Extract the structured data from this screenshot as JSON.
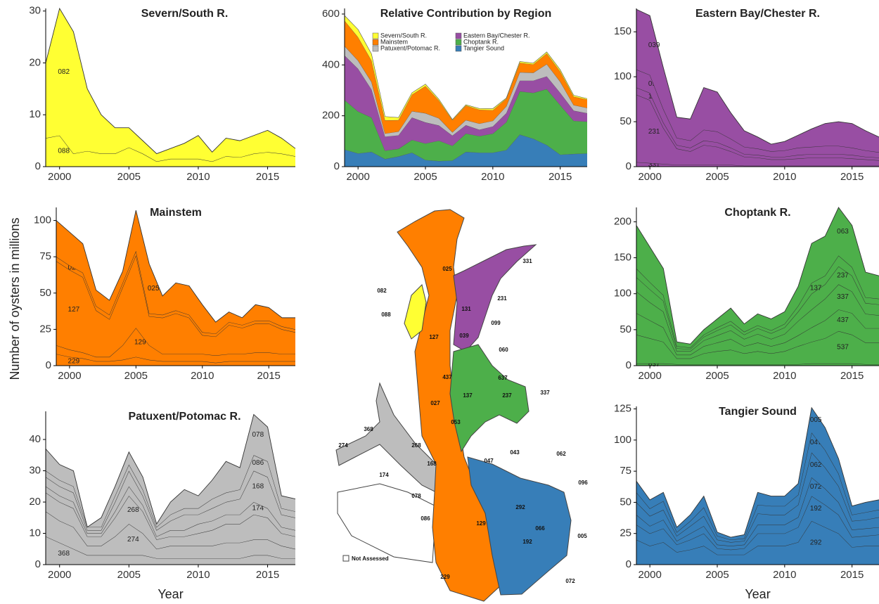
{
  "chart_data": [
    {
      "type": "area",
      "title": "Severn/South R.",
      "color": "#ffff33",
      "x": [
        1999,
        2000,
        2001,
        2002,
        2003,
        2004,
        2005,
        2006,
        2007,
        2008,
        2009,
        2010,
        2011,
        2012,
        2013,
        2014,
        2015,
        2016,
        2017
      ],
      "xlim": [
        1999,
        2017
      ],
      "xticks": [
        2000,
        2005,
        2010,
        2015
      ],
      "ylim": [
        0,
        30.5
      ],
      "yticks": [
        0,
        10,
        20,
        30
      ],
      "series": [
        {
          "name": "082",
          "values": [
            14.5,
            24.5,
            23.5,
            12,
            7.5,
            5,
            3.8,
            2.5,
            1.5,
            2,
            3,
            4.5,
            1.8,
            3.5,
            3.2,
            3.5,
            4.2,
            3,
            1.5
          ]
        },
        {
          "name": "088",
          "values": [
            5.5,
            6,
            2.5,
            3,
            2.5,
            2.5,
            3.7,
            2.5,
            1,
            1.5,
            1.5,
            1.5,
            1,
            2,
            1.8,
            2.5,
            2.8,
            2.5,
            2
          ]
        }
      ]
    },
    {
      "type": "area",
      "title": "Relative Contribution by Region",
      "legend": "top",
      "x": [
        1999,
        2000,
        2001,
        2002,
        2003,
        2004,
        2005,
        2006,
        2007,
        2008,
        2009,
        2010,
        2011,
        2012,
        2013,
        2014,
        2015,
        2016,
        2017
      ],
      "xlim": [
        1999,
        2017
      ],
      "xticks": [
        2000,
        2005,
        2010,
        2015
      ],
      "ylim": [
        0,
        622
      ],
      "yticks": [
        0,
        200,
        400,
        600
      ],
      "series": [
        {
          "name": "Severn/South R.",
          "color": "#ffff33",
          "values": [
            20,
            30.5,
            26,
            15,
            10,
            7.5,
            7.5,
            5,
            2.5,
            3.5,
            4.5,
            6,
            2.8,
            5.5,
            5,
            6,
            7,
            5.5,
            3.5
          ]
        },
        {
          "name": "Mainstem",
          "color": "#ff7f00",
          "values": [
            100,
            92,
            84,
            52,
            45,
            65,
            107,
            70,
            48,
            57,
            55,
            42,
            30,
            37,
            33,
            42,
            40,
            33,
            33
          ]
        },
        {
          "name": "Patuxent/Potomac R.",
          "color": "#bdbdbd",
          "values": [
            37,
            32,
            30,
            12,
            15,
            25,
            36,
            28,
            13,
            20,
            24,
            22,
            27,
            33,
            31,
            48,
            44,
            22,
            21
          ]
        },
        {
          "name": "Eastern Bay/Chester R.",
          "color": "#984ea3",
          "values": [
            175,
            168,
            110,
            55,
            53,
            88,
            83,
            60,
            40,
            33,
            25,
            28,
            35,
            42,
            48,
            50,
            48,
            40,
            33
          ]
        },
        {
          "name": "Choptank R.",
          "color": "#4daf4a",
          "values": [
            195,
            165,
            135,
            33,
            30,
            50,
            65,
            80,
            58,
            72,
            65,
            75,
            110,
            170,
            180,
            220,
            195,
            130,
            125
          ]
        },
        {
          "name": "Tangier Sound",
          "color": "#377eb8",
          "values": [
            67,
            52,
            58,
            30,
            40,
            55,
            26,
            22,
            24,
            58,
            55,
            55,
            65,
            126,
            110,
            85,
            47,
            50,
            52
          ]
        }
      ]
    },
    {
      "type": "area",
      "title": "Eastern Bay/Chester R.",
      "color": "#984ea3",
      "x": [
        1999,
        2000,
        2001,
        2002,
        2003,
        2004,
        2005,
        2006,
        2007,
        2008,
        2009,
        2010,
        2011,
        2012,
        2013,
        2014,
        2015,
        2016,
        2017
      ],
      "xlim": [
        1999,
        2017
      ],
      "xticks": [
        2000,
        2005,
        2010,
        2015
      ],
      "ylim": [
        0,
        176
      ],
      "yticks": [
        0,
        50,
        100,
        150
      ],
      "series": [
        {
          "name": "039",
          "values": [
            67,
            66,
            46,
            23,
            24,
            47,
            44,
            29,
            18,
            13,
            8,
            10,
            14,
            20,
            25,
            27,
            27,
            22,
            17
          ]
        },
        {
          "name": "099",
          "values": [
            20,
            20,
            15,
            8,
            8,
            12,
            12,
            10,
            8,
            7,
            6,
            7,
            8,
            8,
            9,
            9,
            8,
            7,
            6
          ]
        },
        {
          "name": "131",
          "values": [
            8,
            8,
            6,
            4,
            4,
            5,
            5,
            4,
            3,
            3,
            3,
            3,
            4,
            4,
            4,
            4,
            4,
            3,
            3
          ]
        },
        {
          "name": "231",
          "values": [
            75,
            70,
            40,
            18,
            15,
            22,
            20,
            15,
            10,
            9,
            7,
            7,
            8,
            9,
            9,
            9,
            8,
            7,
            6
          ]
        },
        {
          "name": "331",
          "values": [
            5,
            4,
            3,
            2,
            2,
            2,
            2,
            2,
            1,
            1,
            1,
            1,
            1,
            1,
            1,
            1,
            1,
            1,
            1
          ]
        }
      ]
    },
    {
      "type": "area",
      "title": "Mainstem",
      "color": "#ff7f00",
      "ylabel": "Number of oysters in millions",
      "x": [
        1999,
        2000,
        2001,
        2002,
        2003,
        2004,
        2005,
        2006,
        2007,
        2008,
        2009,
        2010,
        2011,
        2012,
        2013,
        2014,
        2015,
        2016,
        2017
      ],
      "xlim": [
        1999,
        2017
      ],
      "xticks": [
        2000,
        2005,
        2010,
        2015
      ],
      "ylim": [
        0,
        109
      ],
      "yticks": [
        0,
        25,
        50,
        75,
        100
      ],
      "series": [
        {
          "name": "025",
          "values": [
            25,
            23,
            20,
            11,
            10,
            8,
            28,
            34,
            13,
            19,
            20,
            19,
            8,
            7,
            5,
            11,
            9,
            6,
            8
          ]
        },
        {
          "name": "027",
          "values": [
            3,
            3,
            3,
            3,
            3,
            3,
            3,
            2,
            2,
            2,
            2,
            2,
            2,
            2,
            2,
            2,
            2,
            2,
            2
          ]
        },
        {
          "name": "127",
          "values": [
            58,
            55,
            52,
            32,
            26,
            40,
            50,
            20,
            25,
            28,
            25,
            13,
            13,
            20,
            18,
            20,
            20,
            17,
            15
          ]
        },
        {
          "name": "129",
          "values": [
            6,
            5,
            4,
            3,
            3,
            10,
            20,
            10,
            5,
            5,
            5,
            5,
            5,
            5,
            5,
            6,
            6,
            5,
            5
          ]
        },
        {
          "name": "229",
          "values": [
            8,
            6,
            5,
            3,
            3,
            4,
            6,
            4,
            3,
            3,
            3,
            3,
            2,
            3,
            3,
            3,
            3,
            3,
            3
          ]
        }
      ]
    },
    {
      "type": "area",
      "title": "Choptank R.",
      "color": "#4daf4a",
      "x": [
        1999,
        2000,
        2001,
        2002,
        2003,
        2004,
        2005,
        2006,
        2007,
        2008,
        2009,
        2010,
        2011,
        2012,
        2013,
        2014,
        2015,
        2016,
        2017
      ],
      "xlim": [
        1999,
        2017
      ],
      "xticks": [
        2000,
        2005,
        2010,
        2015
      ],
      "ylim": [
        0,
        220
      ],
      "yticks": [
        0,
        50,
        100,
        150,
        200
      ],
      "series": [
        {
          "name": "063",
          "values": [
            60,
            49,
            37,
            6,
            5,
            7,
            12,
            18,
            11,
            16,
            16,
            17,
            27,
            55,
            55,
            67,
            58,
            35,
            32
          ]
        },
        {
          "name": "137",
          "values": [
            12,
            10,
            8,
            3,
            2,
            3,
            4,
            5,
            4,
            4,
            4,
            5,
            8,
            15,
            12,
            15,
            12,
            8,
            8
          ]
        },
        {
          "name": "237",
          "values": [
            20,
            18,
            15,
            4,
            3,
            5,
            7,
            8,
            6,
            8,
            8,
            9,
            13,
            22,
            20,
            25,
            22,
            15,
            15
          ]
        },
        {
          "name": "337",
          "values": [
            30,
            25,
            22,
            5,
            5,
            8,
            10,
            12,
            10,
            12,
            10,
            12,
            20,
            25,
            30,
            35,
            30,
            20,
            18
          ]
        },
        {
          "name": "437",
          "values": [
            30,
            25,
            20,
            5,
            5,
            10,
            12,
            15,
            10,
            12,
            10,
            12,
            15,
            20,
            25,
            30,
            30,
            20,
            20
          ]
        },
        {
          "name": "537",
          "values": [
            40,
            35,
            30,
            8,
            8,
            15,
            18,
            20,
            15,
            18,
            15,
            18,
            25,
            30,
            35,
            45,
            40,
            30,
            30
          ]
        },
        {
          "name": "637",
          "values": [
            3,
            3,
            3,
            2,
            2,
            2,
            2,
            2,
            2,
            2,
            2,
            2,
            2,
            3,
            3,
            3,
            3,
            2,
            2
          ]
        }
      ]
    },
    {
      "type": "area",
      "title": "Patuxent/Potomac R.",
      "color": "#bdbdbd",
      "xlabel": "Year",
      "x": [
        1999,
        2000,
        2001,
        2002,
        2003,
        2004,
        2005,
        2006,
        2007,
        2008,
        2009,
        2010,
        2011,
        2012,
        2013,
        2014,
        2015,
        2016,
        2017
      ],
      "xlim": [
        1999,
        2017
      ],
      "xticks": [
        2000,
        2005,
        2010,
        2015
      ],
      "ylim": [
        0,
        49
      ],
      "yticks": [
        0,
        10,
        20,
        30,
        40
      ],
      "series": [
        {
          "name": "078",
          "values": [
            7,
            5,
            5,
            0,
            3,
            3,
            4,
            4,
            1,
            4,
            6,
            4,
            6,
            10,
            7,
            13,
            11,
            4,
            4
          ]
        },
        {
          "name": "086",
          "values": [
            2,
            2,
            2,
            1,
            1,
            2,
            2,
            2,
            1,
            2,
            2,
            2,
            3,
            3,
            3,
            5,
            5,
            2,
            2
          ]
        },
        {
          "name": "168",
          "values": [
            3,
            3,
            3,
            1,
            1,
            3,
            5,
            3,
            2,
            3,
            5,
            3,
            4,
            4,
            5,
            10,
            10,
            4,
            4
          ]
        },
        {
          "name": "174",
          "values": [
            2,
            2,
            2,
            1,
            1,
            2,
            3,
            2,
            1,
            2,
            2,
            3,
            3,
            3,
            3,
            4,
            3,
            2,
            2
          ]
        },
        {
          "name": "268",
          "values": [
            6,
            6,
            6,
            3,
            3,
            6,
            9,
            7,
            3,
            3,
            3,
            4,
            5,
            6,
            6,
            8,
            7,
            4,
            4
          ]
        },
        {
          "name": "274",
          "values": [
            8,
            7,
            7,
            3,
            3,
            6,
            10,
            7,
            3,
            4,
            4,
            4,
            4,
            5,
            5,
            5,
            5,
            4,
            3
          ]
        },
        {
          "name": "368",
          "values": [
            9,
            7,
            5,
            3,
            3,
            3,
            3,
            3,
            2,
            2,
            2,
            2,
            2,
            2,
            2,
            3,
            3,
            2,
            2
          ]
        }
      ]
    },
    {
      "type": "area",
      "title": "Tangier Sound",
      "color": "#377eb8",
      "xlabel": "Year",
      "x": [
        1999,
        2000,
        2001,
        2002,
        2003,
        2004,
        2005,
        2006,
        2007,
        2008,
        2009,
        2010,
        2011,
        2012,
        2013,
        2014,
        2015,
        2016,
        2017
      ],
      "xlim": [
        1999,
        2017
      ],
      "xticks": [
        2000,
        2005,
        2010,
        2015
      ],
      "ylim": [
        0,
        127
      ],
      "yticks": [
        0,
        25,
        50,
        75,
        100,
        125
      ],
      "series": [
        {
          "name": "005",
          "values": [
            9,
            7,
            7,
            4,
            5,
            9,
            3,
            2,
            3,
            10,
            8,
            8,
            9,
            20,
            18,
            12,
            7,
            8,
            8
          ]
        },
        {
          "name": "047",
          "values": [
            8,
            6,
            7,
            3,
            4,
            7,
            3,
            2,
            2,
            7,
            7,
            7,
            8,
            16,
            14,
            10,
            5,
            6,
            6
          ]
        },
        {
          "name": "062",
          "values": [
            10,
            8,
            8,
            4,
            6,
            8,
            4,
            3,
            3,
            9,
            8,
            8,
            10,
            20,
            17,
            13,
            7,
            7,
            8
          ]
        },
        {
          "name": "072",
          "values": [
            8,
            6,
            7,
            3,
            5,
            6,
            3,
            3,
            3,
            7,
            7,
            7,
            8,
            15,
            13,
            10,
            6,
            6,
            6
          ]
        },
        {
          "name": "192",
          "values": [
            12,
            10,
            11,
            6,
            8,
            10,
            5,
            4,
            5,
            10,
            10,
            10,
            12,
            20,
            18,
            15,
            8,
            8,
            9
          ]
        },
        {
          "name": "292",
          "values": [
            20,
            15,
            18,
            10,
            12,
            15,
            8,
            8,
            8,
            15,
            15,
            15,
            18,
            35,
            30,
            25,
            14,
            15,
            15
          ]
        }
      ]
    }
  ],
  "map": {
    "labels": [
      "025",
      "082",
      "088",
      "127",
      "131",
      "231",
      "331",
      "039",
      "099",
      "060",
      "437",
      "637",
      "137",
      "237",
      "337",
      "027",
      "053",
      "368",
      "274",
      "268",
      "168",
      "174",
      "078",
      "086",
      "129",
      "047",
      "043",
      "062",
      "096",
      "292",
      "192",
      "066",
      "005",
      "072",
      "229"
    ],
    "legend": "Not Assessed"
  }
}
